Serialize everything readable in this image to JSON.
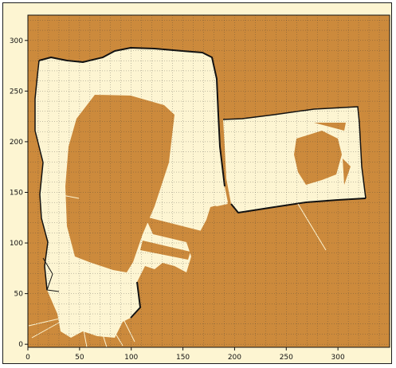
{
  "map": {
    "title": "",
    "x_ticks": [
      0,
      50,
      100,
      150,
      200,
      250,
      300
    ],
    "y_ticks": [
      0,
      50,
      100,
      150,
      200,
      250,
      300
    ],
    "x_range": [
      0,
      350
    ],
    "y_range": [
      -3,
      325
    ],
    "grid_step": 10,
    "grid": true,
    "colors": {
      "occupied": "#cc8a3c",
      "free": "#fdf5d2",
      "grid": "#3a3a3a",
      "wall": "#111111",
      "frame": "#fdf5d2"
    }
  }
}
